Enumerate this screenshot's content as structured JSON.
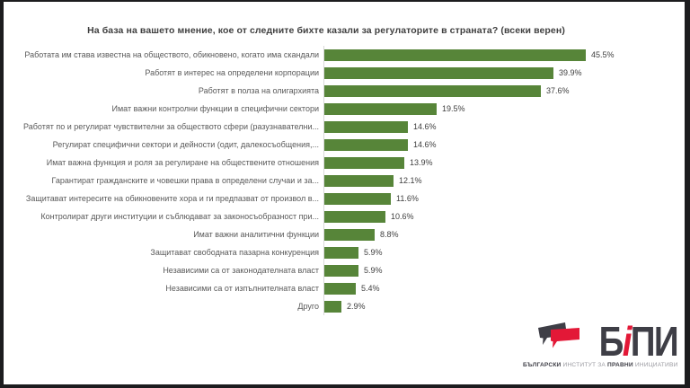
{
  "frame_color": "#1c1c1e",
  "title": "На база на вашето мнение, кое от следните бихте казали за регулаторите в страната? (всеки верен)",
  "chart_data": {
    "type": "bar",
    "orientation": "horizontal",
    "title": "На база на вашето мнение, кое от следните бихте казали за регулаторите в страната? (всеки верен)",
    "categories": [
      "Работата им става известна на обществото, обикновено, когато има скандали",
      "Работят в интерес на определени корпорации",
      "Работят в полза на олигархията",
      "Имат важни контролни функции в специфични сектори",
      "Работят по и регулират чувствителни за обществото сфери (разузнавателни...",
      "Регулират специфични сектори и дейности (одит, далекосъобщения,...",
      "Имат важна функция и роля за регулиране на обществените отношения",
      "Гарантират гражданските и човешки права в определени случаи и за...",
      "Защитават интересите на обикновените хора и ги предпазват от произвол в...",
      "Контролират други институции и съблюдават за законосъобразност при...",
      "Имат важни аналитични функции",
      "Защитават свободната пазарна конкуренция",
      "Независими са от законодателната власт",
      "Независими са от изпълнителната власт",
      "Друго"
    ],
    "values": [
      45.5,
      39.9,
      37.6,
      19.5,
      14.6,
      14.6,
      13.9,
      12.1,
      11.6,
      10.6,
      8.8,
      5.9,
      5.9,
      5.4,
      2.9
    ],
    "value_suffix": "%",
    "bar_color": "#578539",
    "xlim": [
      0,
      50
    ],
    "grid": false,
    "legend": false,
    "data_labels": true
  },
  "logo": {
    "wordmark_b": "Б",
    "wordmark_i": "i",
    "wordmark_pi": "ПИ",
    "tagline_parts": [
      {
        "text": "БЪЛГАРСКИ ",
        "bold": true
      },
      {
        "text": "ИНСТИТУТ ЗА ",
        "bold": false
      },
      {
        "text": "ПРАВНИ ",
        "bold": true
      },
      {
        "text": "ИНИЦИАТИВИ",
        "bold": false
      }
    ],
    "colors": {
      "dark": "#3e3e46",
      "red": "#e31837",
      "muted": "#9a9aa0"
    }
  }
}
